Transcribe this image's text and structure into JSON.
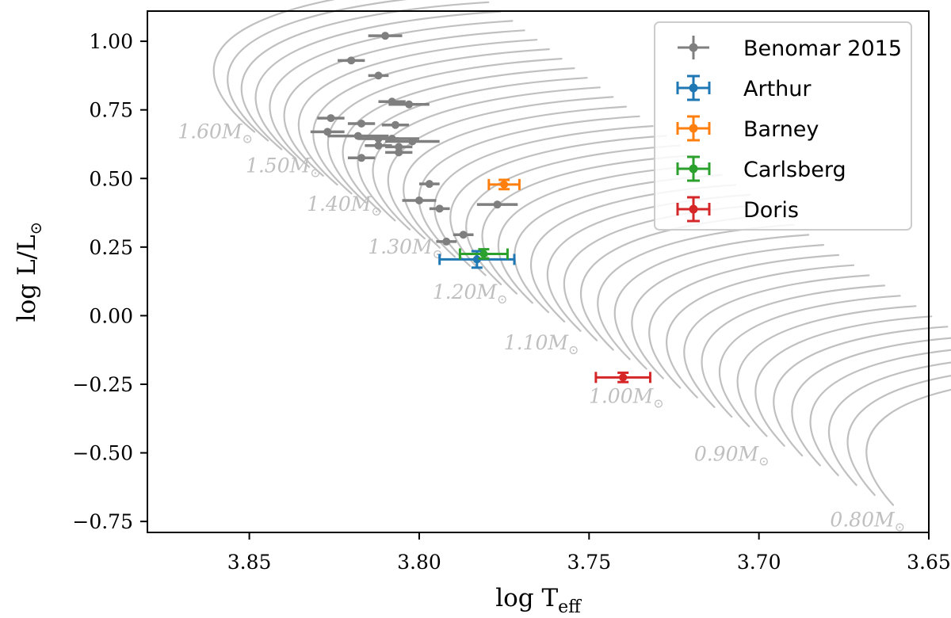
{
  "chart_data": {
    "type": "scatter",
    "xlabel": "log T",
    "xlabel_sub": "eff",
    "ylabel": "log L/L",
    "ylabel_sub": "⊙",
    "xlim": [
      3.88,
      3.65
    ],
    "ylim": [
      -0.79,
      1.11
    ],
    "x_ticks": [
      3.85,
      3.8,
      3.75,
      3.7,
      3.65
    ],
    "x_tick_labels": [
      "3.85",
      "3.80",
      "3.75",
      "3.70",
      "3.65"
    ],
    "y_ticks": [
      1.0,
      0.75,
      0.5,
      0.25,
      0.0,
      -0.25,
      -0.5,
      -0.75
    ],
    "y_tick_labels": [
      "1.00",
      "0.75",
      "0.50",
      "0.25",
      "0.00",
      "−0.25",
      "−0.50",
      "−0.75"
    ],
    "legend_position": "top-right",
    "series": [
      {
        "name": "Benomar 2015",
        "color": "#7f7f7f",
        "points": [
          {
            "x": 3.81,
            "y": 1.02,
            "xerr": 0.005,
            "yerr": 0.0
          },
          {
            "x": 3.82,
            "y": 0.93,
            "xerr": 0.004,
            "yerr": 0.0
          },
          {
            "x": 3.812,
            "y": 0.875,
            "xerr": 0.003,
            "yerr": 0.0
          },
          {
            "x": 3.808,
            "y": 0.78,
            "xerr": 0.004,
            "yerr": 0.0
          },
          {
            "x": 3.803,
            "y": 0.77,
            "xerr": 0.006,
            "yerr": 0.0
          },
          {
            "x": 3.826,
            "y": 0.72,
            "xerr": 0.004,
            "yerr": 0.0
          },
          {
            "x": 3.817,
            "y": 0.7,
            "xerr": 0.004,
            "yerr": 0.0
          },
          {
            "x": 3.807,
            "y": 0.695,
            "xerr": 0.004,
            "yerr": 0.0
          },
          {
            "x": 3.827,
            "y": 0.67,
            "xerr": 0.005,
            "yerr": 0.0
          },
          {
            "x": 3.818,
            "y": 0.655,
            "xerr": 0.009,
            "yerr": 0.0
          },
          {
            "x": 3.812,
            "y": 0.645,
            "xerr": 0.006,
            "yerr": 0.0
          },
          {
            "x": 3.808,
            "y": 0.645,
            "xerr": 0.008,
            "yerr": 0.0
          },
          {
            "x": 3.802,
            "y": 0.635,
            "xerr": 0.008,
            "yerr": 0.0
          },
          {
            "x": 3.812,
            "y": 0.62,
            "xerr": 0.004,
            "yerr": 0.0
          },
          {
            "x": 3.806,
            "y": 0.615,
            "xerr": 0.004,
            "yerr": 0.0
          },
          {
            "x": 3.806,
            "y": 0.595,
            "xerr": 0.004,
            "yerr": 0.0
          },
          {
            "x": 3.817,
            "y": 0.575,
            "xerr": 0.004,
            "yerr": 0.0
          },
          {
            "x": 3.797,
            "y": 0.48,
            "xerr": 0.003,
            "yerr": 0.0
          },
          {
            "x": 3.8,
            "y": 0.42,
            "xerr": 0.005,
            "yerr": 0.0
          },
          {
            "x": 3.794,
            "y": 0.39,
            "xerr": 0.003,
            "yerr": 0.0
          },
          {
            "x": 3.777,
            "y": 0.405,
            "xerr": 0.006,
            "yerr": 0.0
          },
          {
            "x": 3.787,
            "y": 0.295,
            "xerr": 0.003,
            "yerr": 0.0
          },
          {
            "x": 3.792,
            "y": 0.27,
            "xerr": 0.003,
            "yerr": 0.0
          }
        ]
      },
      {
        "name": "Arthur",
        "color": "#1f77b4",
        "points": [
          {
            "x": 3.783,
            "y": 0.205,
            "xerr": 0.011,
            "yerr": 0.03
          }
        ]
      },
      {
        "name": "Barney",
        "color": "#ff7f0e",
        "points": [
          {
            "x": 3.775,
            "y": 0.478,
            "xerr": 0.0045,
            "yerr": 0.017
          }
        ]
      },
      {
        "name": "Carlsberg",
        "color": "#2ca02c",
        "points": [
          {
            "x": 3.781,
            "y": 0.225,
            "xerr": 0.007,
            "yerr": 0.017
          }
        ]
      },
      {
        "name": "Doris",
        "color": "#d62728",
        "points": [
          {
            "x": 3.74,
            "y": -0.225,
            "xerr": 0.008,
            "yerr": 0.017
          }
        ]
      }
    ],
    "tracks": {
      "description": "Evolutionary tracks from 0.80 to 1.60 solar masses in 0.02 steps",
      "masses": [
        0.8,
        0.82,
        0.84,
        0.86,
        0.88,
        0.9,
        0.92,
        0.94,
        0.96,
        0.98,
        1.0,
        1.02,
        1.04,
        1.06,
        1.08,
        1.1,
        1.12,
        1.14,
        1.16,
        1.18,
        1.2,
        1.22,
        1.24,
        1.26,
        1.28,
        1.3,
        1.32,
        1.34,
        1.36,
        1.38,
        1.4,
        1.42,
        1.44,
        1.46,
        1.48,
        1.5,
        1.52,
        1.54,
        1.56,
        1.58,
        1.6
      ],
      "color": "#c0c0c0"
    },
    "mass_labels": [
      {
        "text": "1.60M",
        "x": 3.849,
        "y": 0.67
      },
      {
        "text": "1.50M",
        "x": 3.829,
        "y": 0.545
      },
      {
        "text": "1.40M",
        "x": 3.811,
        "y": 0.405
      },
      {
        "text": "1.30M",
        "x": 3.793,
        "y": 0.25
      },
      {
        "text": "1.20M",
        "x": 3.774,
        "y": 0.085
      },
      {
        "text": "1.10M",
        "x": 3.753,
        "y": -0.1
      },
      {
        "text": "1.00M",
        "x": 3.728,
        "y": -0.295
      },
      {
        "text": "0.90M",
        "x": 3.697,
        "y": -0.505
      },
      {
        "text": "0.80M",
        "x": 3.657,
        "y": -0.745
      }
    ],
    "mass_symbol": "⊙"
  }
}
